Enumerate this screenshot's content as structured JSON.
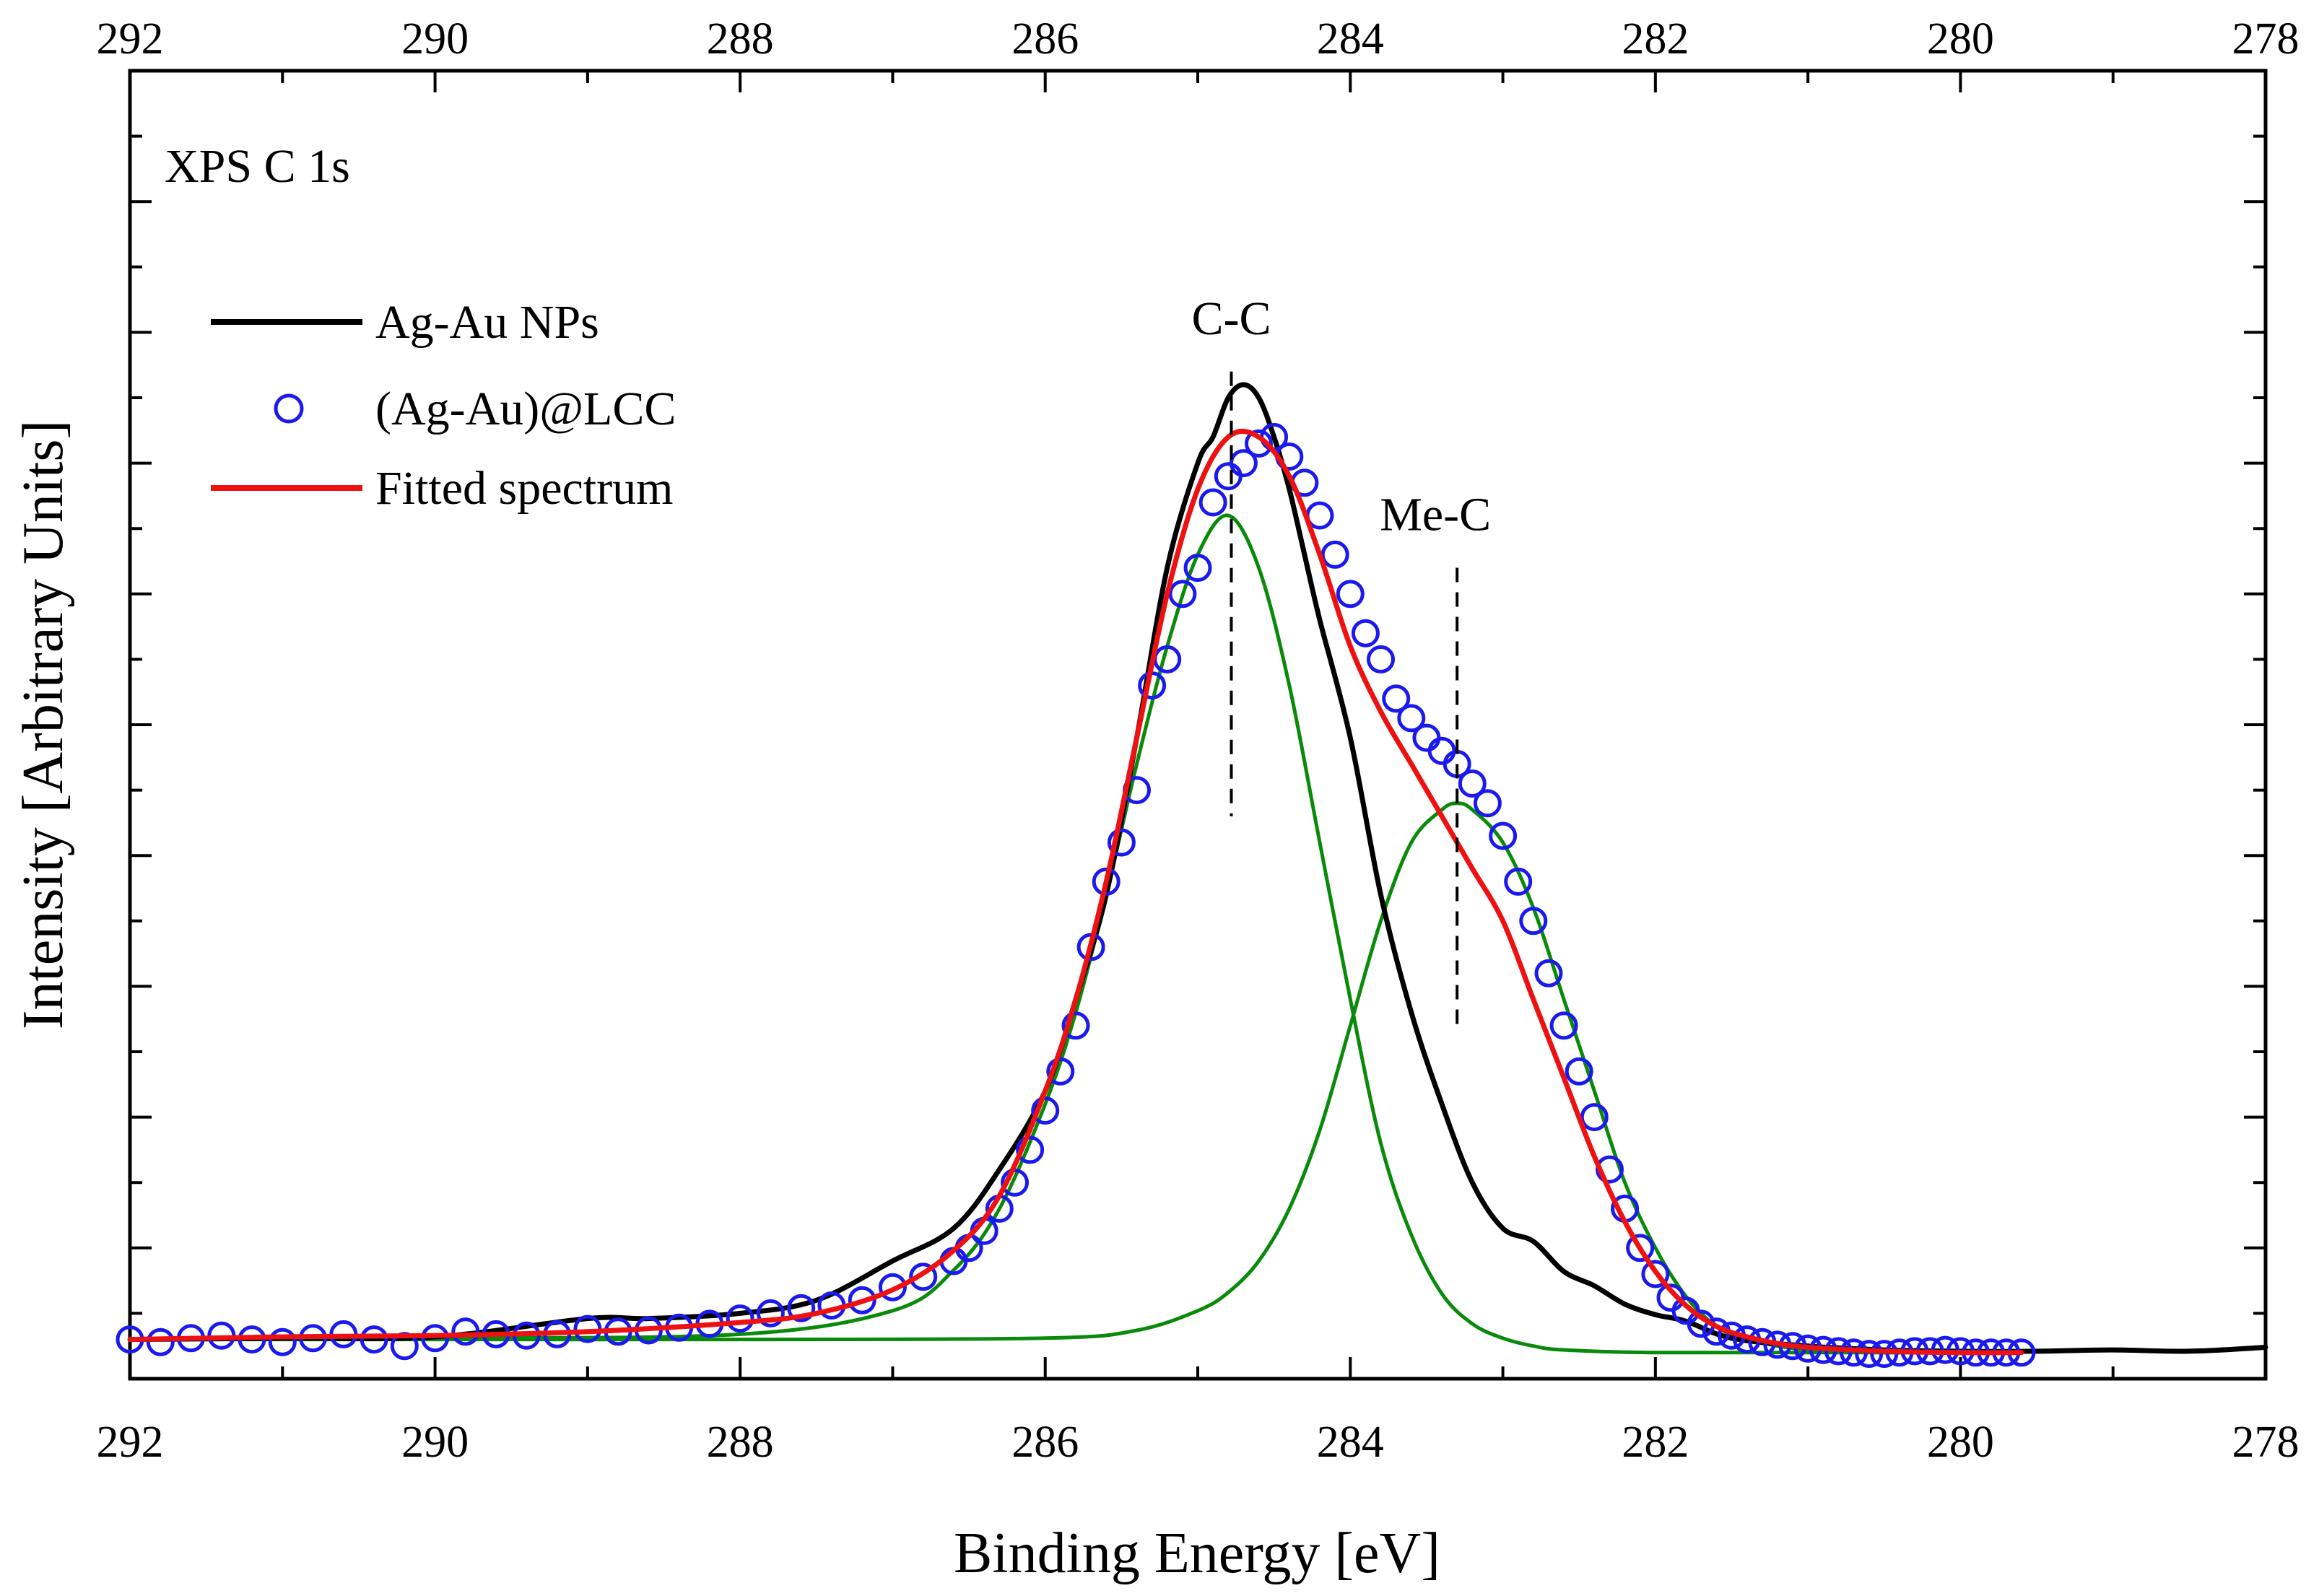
{
  "chart_data": {
    "type": "line",
    "title": "XPS C 1s",
    "xlabel": "Binding Energy [eV]",
    "ylabel": "Intensity [Arbitrary Units]",
    "xlim": [
      292,
      278
    ],
    "ylim": [
      0,
      1.0
    ],
    "x_reversed": true,
    "y_tick_labels_shown": false,
    "grid": false,
    "legend_position": "upper-left",
    "x_ticks": [
      292,
      290,
      288,
      286,
      284,
      282,
      280,
      278
    ],
    "x_tick_labels": [
      "292",
      "290",
      "288",
      "286",
      "284",
      "282",
      "280",
      "278"
    ],
    "top_x_tick_labels": [
      "292",
      "290",
      "288",
      "286",
      "284",
      "282",
      "280",
      "278"
    ],
    "legend": [
      {
        "label": "Ag-Au NPs",
        "series": "ag_au_nps"
      },
      {
        "label": "(Ag-Au)@LCC",
        "series": "ag_au_lcc"
      },
      {
        "label": "Fitted spectrum",
        "series": "fitted"
      }
    ],
    "annotations": [
      {
        "text": "C-C",
        "x": 284.78,
        "y_from": 0.43,
        "y_to": 0.77
      },
      {
        "text": "Me-C",
        "x": 283.3,
        "y_from": 0.27,
        "y_to": 0.62
      }
    ],
    "series": [
      {
        "id": "ag_au_nps",
        "name": "Ag-Au NPs",
        "style": "line",
        "color": "#000000",
        "x": [
          292.0,
          291.0,
          290.0,
          289.0,
          288.6,
          288.0,
          287.5,
          287.0,
          286.6,
          286.3,
          286.0,
          285.8,
          285.6,
          285.4,
          285.2,
          285.0,
          284.9,
          284.8,
          284.7,
          284.6,
          284.5,
          284.4,
          284.3,
          284.2,
          284.0,
          283.8,
          283.6,
          283.4,
          283.2,
          283.0,
          282.8,
          282.6,
          282.4,
          282.2,
          282.0,
          281.8,
          281.5,
          281.0,
          280.5,
          280.0,
          279.5,
          279.0,
          278.5,
          278.0
        ],
        "y": [
          0.03,
          0.031,
          0.032,
          0.046,
          0.046,
          0.05,
          0.06,
          0.09,
          0.115,
          0.16,
          0.22,
          0.29,
          0.37,
          0.49,
          0.62,
          0.7,
          0.72,
          0.75,
          0.76,
          0.75,
          0.72,
          0.68,
          0.63,
          0.58,
          0.49,
          0.37,
          0.28,
          0.21,
          0.15,
          0.115,
          0.105,
          0.082,
          0.071,
          0.057,
          0.049,
          0.044,
          0.031,
          0.025,
          0.022,
          0.021,
          0.021,
          0.022,
          0.021,
          0.024
        ]
      },
      {
        "id": "fitted",
        "name": "Fitted spectrum",
        "style": "line",
        "color": "#ee1111",
        "x": [
          292.0,
          291.0,
          290.0,
          289.0,
          288.0,
          287.5,
          287.0,
          286.6,
          286.3,
          286.0,
          285.8,
          285.6,
          285.4,
          285.2,
          285.0,
          284.8,
          284.6,
          284.4,
          284.2,
          284.0,
          283.8,
          283.6,
          283.4,
          283.2,
          283.0,
          282.8,
          282.6,
          282.4,
          282.2,
          282.0,
          281.8,
          281.6,
          281.4,
          281.2,
          281.0,
          280.5,
          280.0,
          279.6
        ],
        "y": [
          0.03,
          0.032,
          0.033,
          0.036,
          0.043,
          0.05,
          0.068,
          0.098,
          0.14,
          0.22,
          0.29,
          0.38,
          0.49,
          0.6,
          0.68,
          0.72,
          0.72,
          0.69,
          0.63,
          0.56,
          0.51,
          0.47,
          0.43,
          0.39,
          0.35,
          0.29,
          0.23,
          0.17,
          0.12,
          0.082,
          0.056,
          0.04,
          0.032,
          0.027,
          0.024,
          0.021,
          0.02,
          0.02
        ]
      },
      {
        "id": "component_cc",
        "name": "C-C component",
        "style": "line",
        "color": "#0a8a0a",
        "x": [
          292.0,
          290.0,
          288.0,
          287.0,
          286.6,
          286.3,
          286.0,
          285.8,
          285.6,
          285.4,
          285.2,
          285.0,
          284.8,
          284.6,
          284.4,
          284.2,
          284.0,
          283.8,
          283.6,
          283.4,
          283.2,
          283.0,
          282.8,
          282.6,
          282.0,
          281.0,
          279.6
        ],
        "y": [
          0.03,
          0.031,
          0.034,
          0.052,
          0.083,
          0.13,
          0.21,
          0.28,
          0.37,
          0.47,
          0.56,
          0.63,
          0.66,
          0.62,
          0.53,
          0.41,
          0.29,
          0.18,
          0.11,
          0.065,
          0.042,
          0.031,
          0.025,
          0.022,
          0.02,
          0.02,
          0.02
        ]
      },
      {
        "id": "component_mec",
        "name": "Me-C component",
        "style": "line",
        "color": "#0a8a0a",
        "x": [
          292.0,
          290.0,
          288.0,
          286.0,
          285.4,
          285.0,
          284.8,
          284.6,
          284.4,
          284.2,
          284.0,
          283.8,
          283.6,
          283.4,
          283.3,
          283.2,
          283.0,
          282.8,
          282.6,
          282.4,
          282.2,
          282.0,
          281.8,
          281.6,
          281.4,
          281.0,
          280.5,
          279.6
        ],
        "y": [
          0.03,
          0.03,
          0.03,
          0.031,
          0.037,
          0.052,
          0.066,
          0.09,
          0.13,
          0.19,
          0.27,
          0.35,
          0.41,
          0.435,
          0.44,
          0.435,
          0.41,
          0.36,
          0.29,
          0.22,
          0.15,
          0.1,
          0.063,
          0.04,
          0.03,
          0.022,
          0.02,
          0.02
        ]
      },
      {
        "id": "ag_au_lcc",
        "name": "(Ag-Au)@LCC",
        "style": "markers",
        "color": "#1a1aee",
        "x": [
          292.0,
          291.8,
          291.6,
          291.4,
          291.2,
          291.0,
          290.8,
          290.6,
          290.4,
          290.2,
          290.0,
          289.8,
          289.6,
          289.4,
          289.2,
          289.0,
          288.8,
          288.6,
          288.4,
          288.2,
          288.0,
          287.8,
          287.6,
          287.4,
          287.2,
          287.0,
          286.8,
          286.6,
          286.5,
          286.4,
          286.3,
          286.2,
          286.1,
          286.0,
          285.9,
          285.8,
          285.7,
          285.6,
          285.5,
          285.4,
          285.3,
          285.2,
          285.1,
          285.0,
          284.9,
          284.8,
          284.7,
          284.6,
          284.5,
          284.4,
          284.3,
          284.2,
          284.1,
          284.0,
          283.9,
          283.8,
          283.7,
          283.6,
          283.5,
          283.4,
          283.3,
          283.2,
          283.1,
          283.0,
          282.9,
          282.8,
          282.7,
          282.6,
          282.5,
          282.4,
          282.3,
          282.2,
          282.1,
          282.0,
          281.9,
          281.8,
          281.7,
          281.6,
          281.5,
          281.4,
          281.3,
          281.2,
          281.1,
          281.0,
          280.9,
          280.8,
          280.7,
          280.6,
          280.5,
          280.4,
          280.3,
          280.2,
          280.1,
          280.0,
          279.9,
          279.8,
          279.7,
          279.6
        ],
        "y": [
          0.03,
          0.028,
          0.031,
          0.033,
          0.03,
          0.028,
          0.031,
          0.034,
          0.03,
          0.025,
          0.031,
          0.036,
          0.034,
          0.033,
          0.034,
          0.038,
          0.036,
          0.037,
          0.039,
          0.042,
          0.046,
          0.05,
          0.054,
          0.056,
          0.06,
          0.07,
          0.078,
          0.09,
          0.1,
          0.113,
          0.13,
          0.15,
          0.175,
          0.205,
          0.235,
          0.27,
          0.33,
          0.38,
          0.41,
          0.45,
          0.53,
          0.55,
          0.6,
          0.62,
          0.67,
          0.69,
          0.7,
          0.715,
          0.72,
          0.705,
          0.685,
          0.66,
          0.63,
          0.6,
          0.57,
          0.55,
          0.52,
          0.505,
          0.49,
          0.48,
          0.47,
          0.455,
          0.44,
          0.415,
          0.38,
          0.35,
          0.31,
          0.27,
          0.235,
          0.2,
          0.16,
          0.13,
          0.1,
          0.08,
          0.062,
          0.052,
          0.042,
          0.036,
          0.033,
          0.03,
          0.028,
          0.026,
          0.025,
          0.023,
          0.022,
          0.021,
          0.02,
          0.019,
          0.019,
          0.02,
          0.021,
          0.021,
          0.022,
          0.021,
          0.02,
          0.02,
          0.02,
          0.02
        ]
      }
    ]
  }
}
